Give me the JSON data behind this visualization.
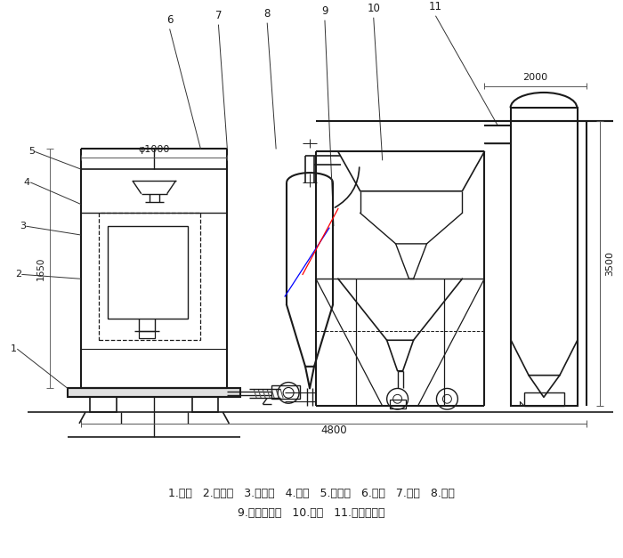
{
  "bg_color": "#ffffff",
  "line_color": "#1a1a1a",
  "text_color": "#1a1a1a",
  "legend_line1": "1.底座   2.回风道   3.激振器   4.筛网   5.进料斗   6.风机   7.绞龙   8.料仓",
  "legend_line2": "9.旋风分离器   10.支架   11.布袋除尘器",
  "dim_2000": "2000",
  "dim_3500": "3500",
  "dim_4800": "4800",
  "dim_1650": "1650",
  "dim_phi1000": "φ1000",
  "figsize": [
    7.0,
    6.27
  ],
  "dpi": 100
}
